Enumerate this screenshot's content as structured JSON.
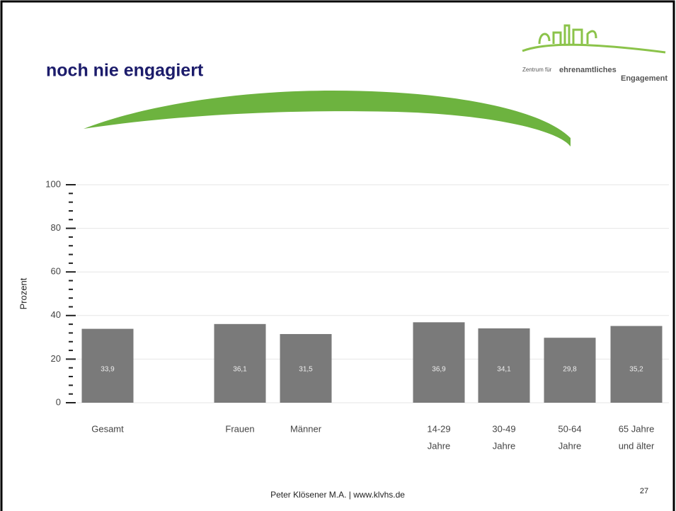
{
  "chart_data": {
    "type": "bar",
    "title": "noch nie engagiert",
    "logo_text": [
      "Zentrum für",
      "ehrenamtliches",
      "Engagement"
    ],
    "y_label": "Prozent",
    "categories": [
      [
        "Gesamt"
      ],
      [
        "Frauen"
      ],
      [
        "Männer"
      ],
      [
        "14-29",
        "Jahre"
      ],
      [
        "30-49",
        "Jahre"
      ],
      [
        "50-64",
        "Jahre"
      ],
      [
        "65 Jahre",
        "und älter"
      ]
    ],
    "values": [
      33.9,
      36.1,
      31.5,
      36.9,
      34.1,
      29.8,
      35.2
    ],
    "value_labels": [
      "33,9",
      "36,1",
      "31,5",
      "36,9",
      "34,1",
      "29,8",
      "35,2"
    ],
    "color": "#7a7a7a",
    "ylim": [
      0,
      100
    ],
    "yticks": [
      0,
      20,
      40,
      60,
      80,
      100
    ],
    "grid": true,
    "footer": "Peter Klösener M.A. | www.klvhs.de",
    "page_number": "27"
  }
}
